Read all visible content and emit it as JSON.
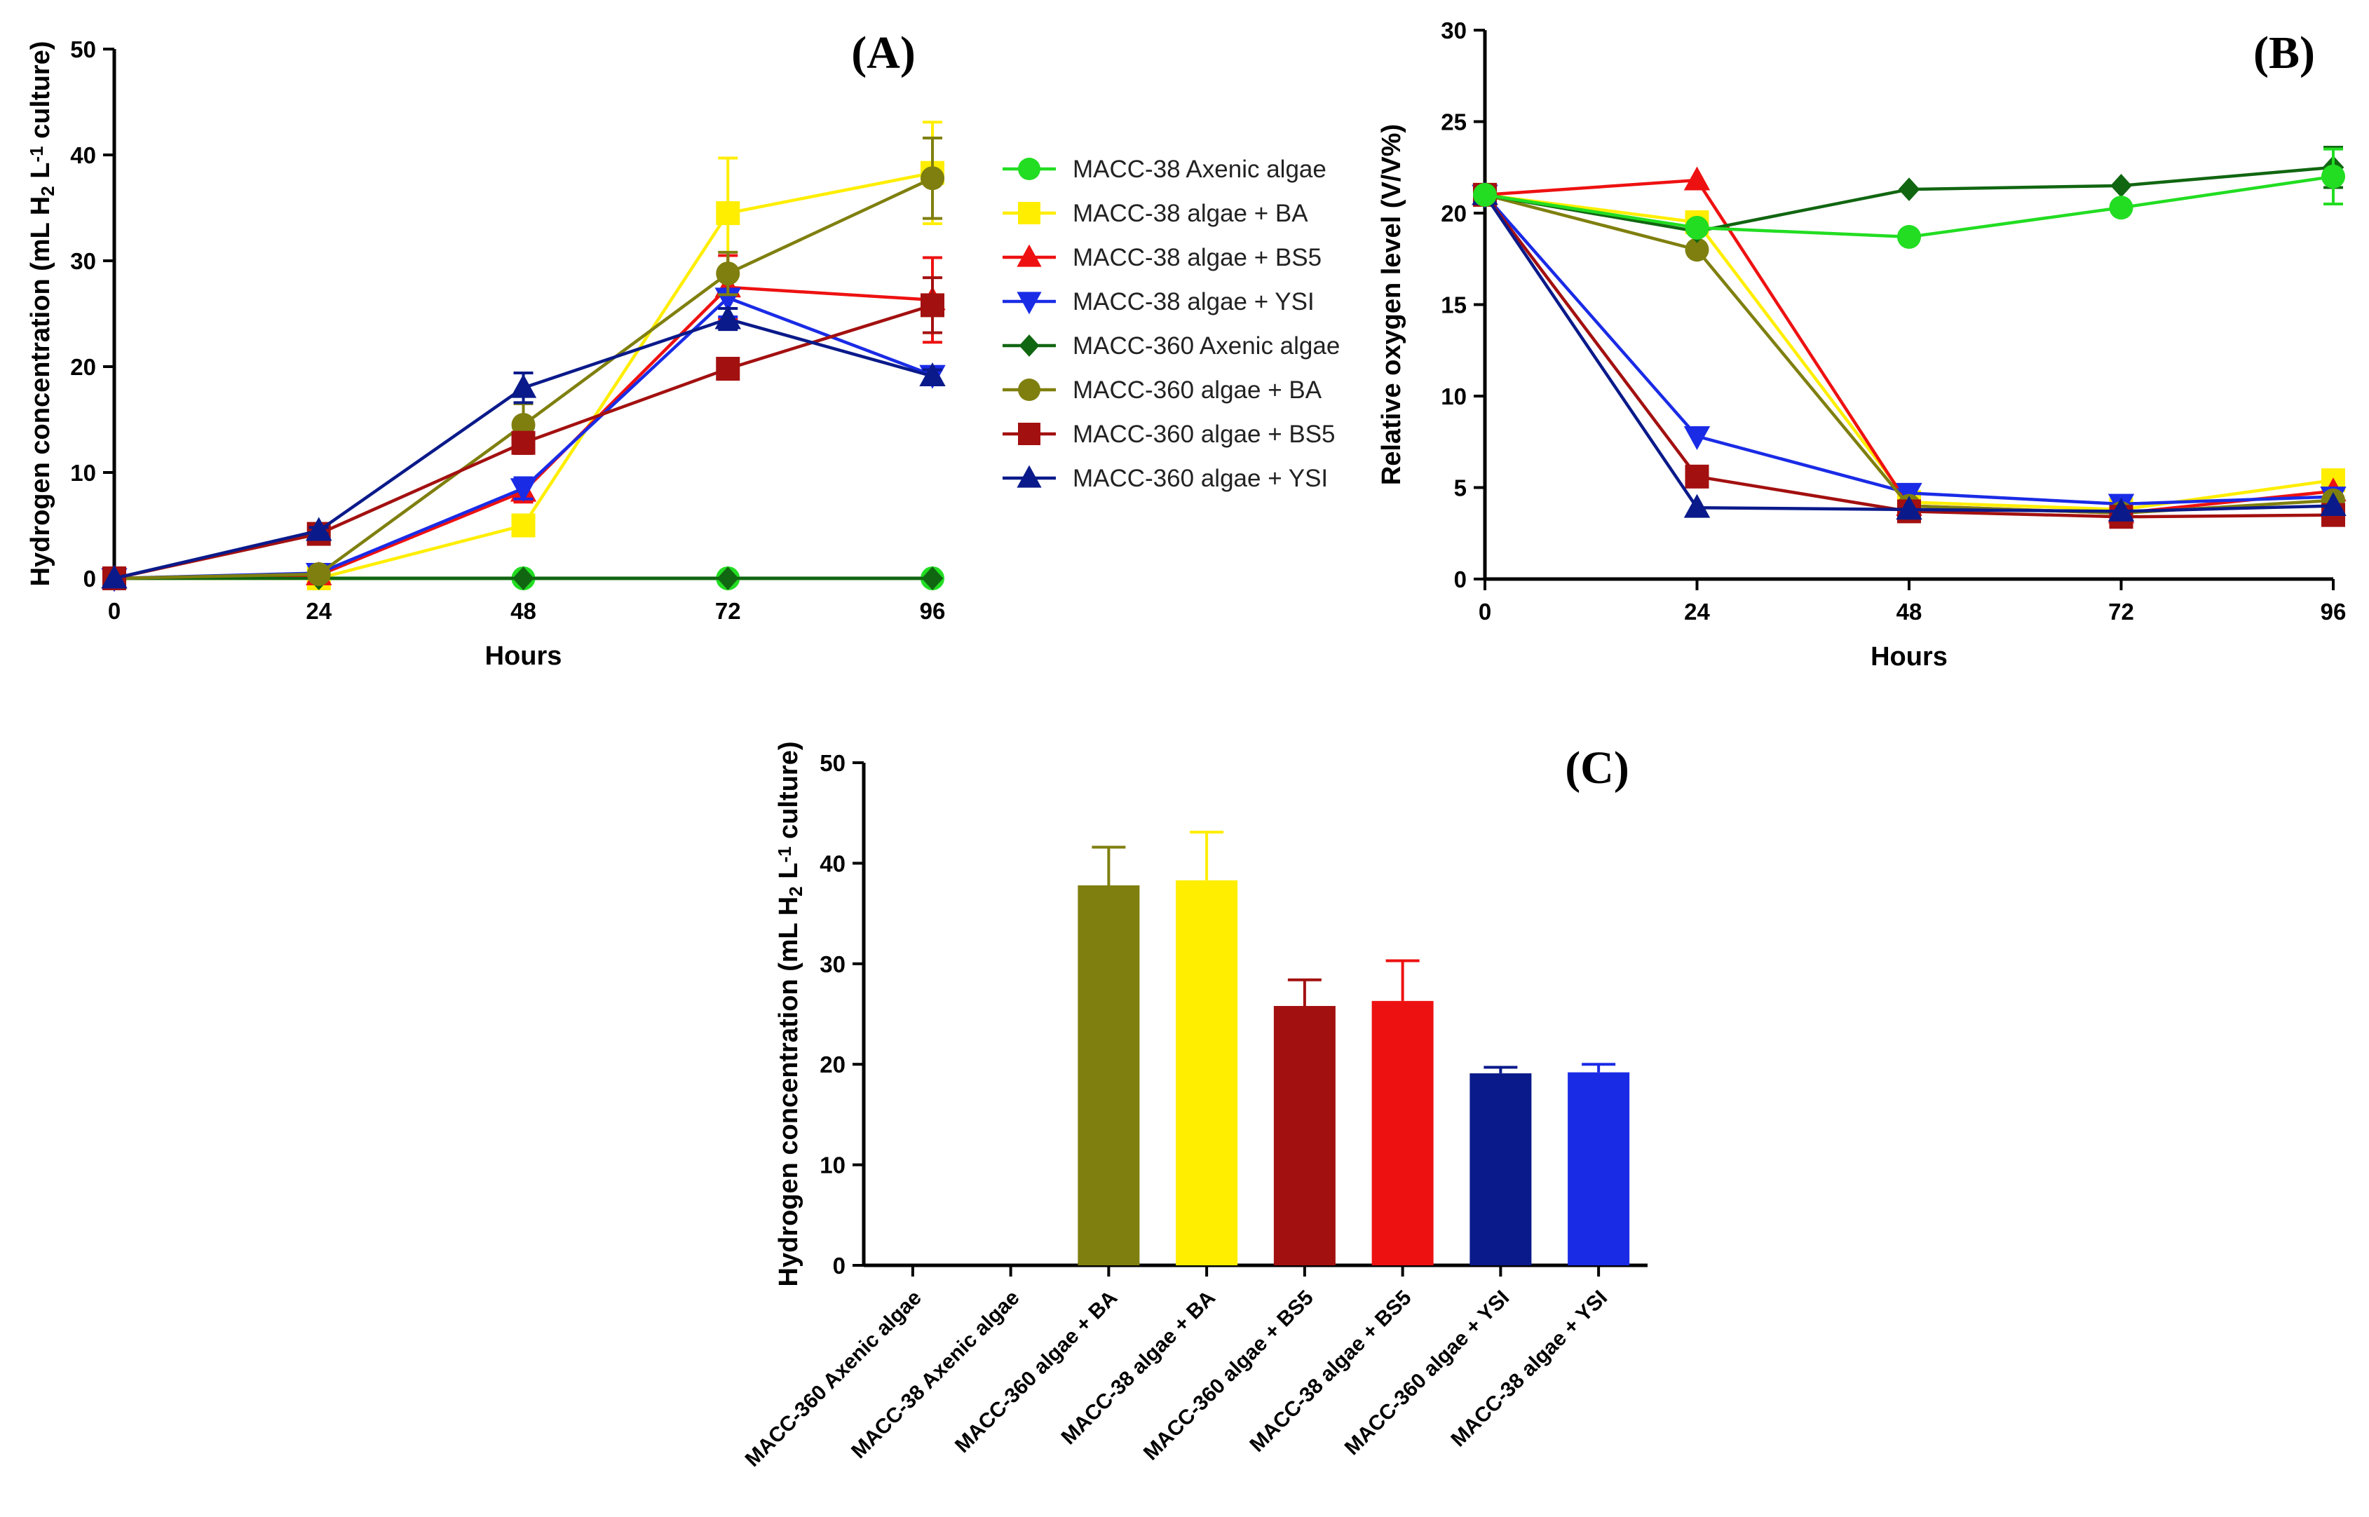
{
  "chart_data": [
    {
      "type": "line",
      "title": "(A)",
      "xlabel": "Hours",
      "ylabel": [
        "Hydrogen concentration (mL H",
        "2",
        " L",
        "-1",
        " culture)"
      ],
      "x": [
        0,
        24,
        48,
        72,
        96
      ],
      "xticks": [
        "0",
        "24",
        "48",
        "72",
        "96"
      ],
      "ylim": [
        0,
        50
      ],
      "yticks": [
        "0",
        "10",
        "20",
        "30",
        "40",
        "50"
      ],
      "series": [
        {
          "name": "MACC-38 Axenic algae",
          "color": "#22dd22",
          "marker": "circle",
          "values": [
            0,
            0,
            0,
            0,
            0
          ],
          "err": [
            0,
            0,
            0,
            0,
            0
          ]
        },
        {
          "name": "MACC-38 algae + BA",
          "color": "#ffee00",
          "marker": "square",
          "values": [
            0,
            0,
            5,
            34.5,
            38.3
          ],
          "err": [
            0,
            0,
            0.8,
            5.2,
            4.8
          ]
        },
        {
          "name": "MACC-38 algae + BS5",
          "color": "#ee1111",
          "marker": "triangle-up",
          "values": [
            0,
            0.3,
            8.2,
            27.5,
            26.3
          ],
          "err": [
            0,
            0.3,
            1.0,
            3.0,
            4.0
          ]
        },
        {
          "name": "MACC-38 algae + YSI",
          "color": "#1a2be6",
          "marker": "triangle-down",
          "values": [
            0,
            0.5,
            8.5,
            26.5,
            19.2
          ],
          "err": [
            0,
            0.4,
            1.0,
            1.8,
            0.8
          ]
        },
        {
          "name": "MACC-360 Axenic algae",
          "color": "#116611",
          "marker": "diamond",
          "values": [
            0,
            0,
            0,
            0,
            0
          ],
          "err": [
            0,
            0,
            0,
            0,
            0
          ]
        },
        {
          "name": "MACC-360 algae + BA",
          "color": "#7f7f0f",
          "marker": "circle",
          "values": [
            0,
            0.4,
            14.5,
            28.8,
            37.8
          ],
          "err": [
            0,
            0.3,
            2.0,
            2.0,
            3.8
          ]
        },
        {
          "name": "MACC-360 algae + BS5",
          "color": "#a31010",
          "marker": "square",
          "values": [
            0,
            4.2,
            12.8,
            19.8,
            25.8
          ],
          "err": [
            0,
            0.3,
            1.0,
            0.8,
            2.6
          ]
        },
        {
          "name": "MACC-360 algae + YSI",
          "color": "#0a1a8a",
          "marker": "triangle-up",
          "values": [
            0,
            4.5,
            18.0,
            24.5,
            19.1
          ],
          "err": [
            0,
            0.3,
            1.4,
            1.0,
            0.6
          ]
        }
      ]
    },
    {
      "type": "line",
      "title": "(B)",
      "xlabel": "Hours",
      "ylabel": "Relative oxygen level (V/V%)",
      "x": [
        0,
        24,
        48,
        72,
        96
      ],
      "xticks": [
        "0",
        "24",
        "48",
        "72",
        "96"
      ],
      "ylim": [
        0,
        30
      ],
      "yticks": [
        "0",
        "5",
        "10",
        "15",
        "20",
        "25",
        "30"
      ],
      "series": [
        {
          "name": "MACC-38 algae + BA",
          "color": "#ffee00",
          "marker": "square",
          "values": [
            21,
            19.5,
            4.2,
            3.8,
            5.4
          ],
          "err": [
            0,
            0,
            0,
            0,
            0
          ]
        },
        {
          "name": "MACC-38 algae + BS5",
          "color": "#ee1111",
          "marker": "triangle-up",
          "values": [
            21,
            21.8,
            4.0,
            3.6,
            4.8
          ],
          "err": [
            0,
            0,
            0,
            0,
            0
          ]
        },
        {
          "name": "MACC-38 algae + YSI",
          "color": "#1a2be6",
          "marker": "triangle-down",
          "values": [
            21,
            7.8,
            4.7,
            4.1,
            4.5
          ],
          "err": [
            0,
            0,
            0,
            0,
            0
          ]
        },
        {
          "name": "MACC-360 algae + BA",
          "color": "#7f7f0f",
          "marker": "circle",
          "values": [
            21,
            18.0,
            4.0,
            3.6,
            4.3
          ],
          "err": [
            0,
            0,
            0,
            0,
            0
          ]
        },
        {
          "name": "MACC-360 algae + BS5",
          "color": "#a31010",
          "marker": "square",
          "values": [
            21,
            5.6,
            3.7,
            3.4,
            3.5
          ],
          "err": [
            0,
            0,
            0,
            0,
            0
          ]
        },
        {
          "name": "MACC-360 algae + YSI",
          "color": "#0a1a8a",
          "marker": "triangle-up",
          "values": [
            21,
            3.9,
            3.8,
            3.7,
            4.0
          ],
          "err": [
            0,
            0,
            0,
            0,
            0
          ]
        },
        {
          "name": "MACC-360 Axenic algae",
          "color": "#116611",
          "marker": "diamond",
          "values": [
            21,
            19.0,
            21.3,
            21.5,
            22.5
          ],
          "err": [
            0,
            0,
            0,
            0,
            1.1
          ]
        },
        {
          "name": "MACC-38 Axenic algae",
          "color": "#22dd22",
          "marker": "circle",
          "values": [
            21,
            19.2,
            18.7,
            20.3,
            22.0
          ],
          "err": [
            0,
            0,
            0,
            0,
            1.5
          ]
        }
      ]
    },
    {
      "type": "bar",
      "title": "(C)",
      "xlabel": "",
      "ylabel": [
        "Hydrogen concentration (mL H",
        "2",
        " L",
        "-1",
        " culture)"
      ],
      "ylim": [
        0,
        50
      ],
      "yticks": [
        "0",
        "10",
        "20",
        "30",
        "40",
        "50"
      ],
      "categories": [
        "MACC-360 Axenic algae",
        "MACC-38 Axenic algae",
        "MACC-360 algae + BA",
        "MACC-38 algae + BA",
        "MACC-360 algae + BS5",
        "MACC-38 algae + BS5",
        "MACC-360 algae + YSI",
        "MACC-38 algae + YSI"
      ],
      "values": [
        0,
        0,
        37.8,
        38.3,
        25.8,
        26.3,
        19.1,
        19.2
      ],
      "err": [
        0,
        0,
        3.8,
        4.8,
        2.6,
        4.0,
        0.6,
        0.8
      ],
      "colors": [
        "#116611",
        "#22dd22",
        "#7f7f0f",
        "#ffee00",
        "#a31010",
        "#ee1111",
        "#0a1a8a",
        "#1a2be6"
      ]
    }
  ],
  "legend": [
    {
      "name": "MACC-38 Axenic algae",
      "color": "#22dd22",
      "marker": "circle"
    },
    {
      "name": "MACC-38 algae + BA",
      "color": "#ffee00",
      "marker": "square"
    },
    {
      "name": "MACC-38 algae + BS5",
      "color": "#ee1111",
      "marker": "triangle-up"
    },
    {
      "name": "MACC-38 algae + YSI",
      "color": "#1a2be6",
      "marker": "triangle-down"
    },
    {
      "name": "MACC-360 Axenic algae",
      "color": "#116611",
      "marker": "diamond"
    },
    {
      "name": "MACC-360 algae + BA",
      "color": "#7f7f0f",
      "marker": "circle"
    },
    {
      "name": "MACC-360 algae + BS5",
      "color": "#a31010",
      "marker": "square"
    },
    {
      "name": "MACC-360 algae + YSI",
      "color": "#0a1a8a",
      "marker": "triangle-up"
    }
  ]
}
